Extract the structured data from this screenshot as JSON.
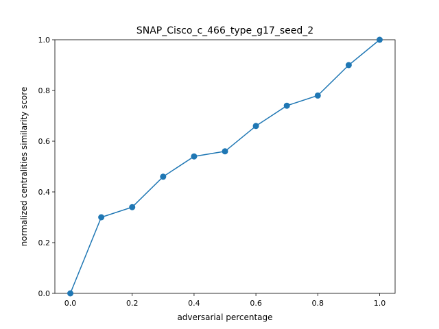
{
  "chart_data": {
    "type": "line",
    "title": "SNAP_Cisco_c_466_type_g17_seed_2",
    "xlabel": "adversarial percentage",
    "ylabel": "normalized centralities similarity score",
    "xlim": [
      -0.05,
      1.05
    ],
    "ylim": [
      0.0,
      1.0
    ],
    "xticks": [
      "0.0",
      "0.2",
      "0.4",
      "0.6",
      "0.8",
      "1.0"
    ],
    "yticks": [
      "0.0",
      "0.2",
      "0.4",
      "0.6",
      "0.8",
      "1.0"
    ],
    "grid": false,
    "x": [
      0.0,
      0.1,
      0.2,
      0.3,
      0.4,
      0.5,
      0.6,
      0.7,
      0.8,
      0.9,
      1.0
    ],
    "series": [
      {
        "values": [
          0.0,
          0.3,
          0.34,
          0.46,
          0.54,
          0.56,
          0.66,
          0.74,
          0.78,
          0.9,
          1.0
        ],
        "color": "#1f77b4",
        "marker": "circle"
      }
    ]
  }
}
